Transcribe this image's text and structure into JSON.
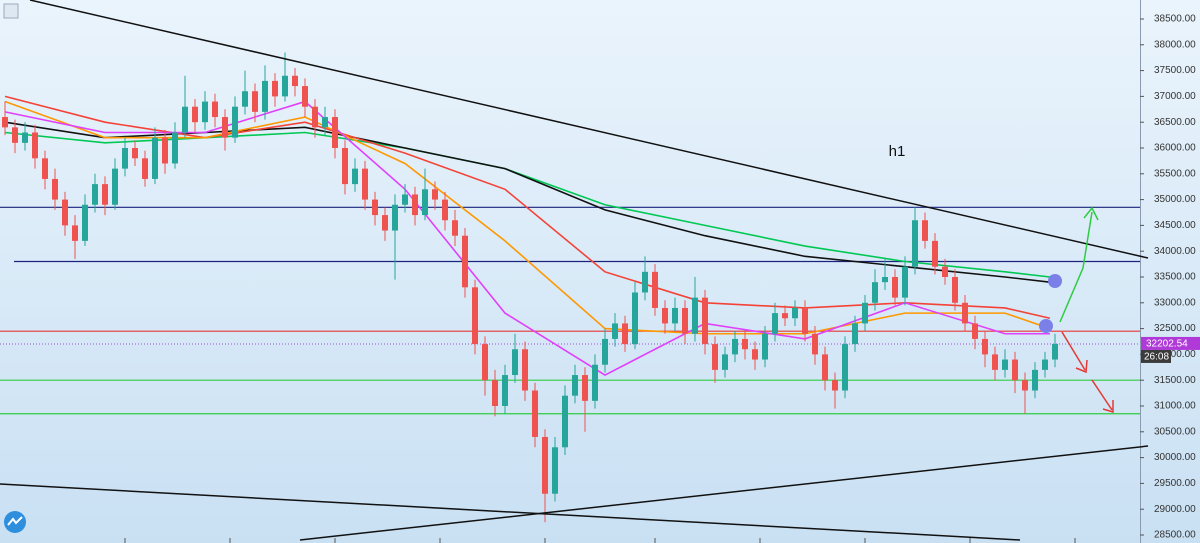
{
  "chart_data": {
    "type": "candlestick",
    "label": "h1",
    "ylim": [
      28345,
      38868
    ],
    "yticks": [
      {
        "value": 28500,
        "label": "28500.00"
      },
      {
        "value": 29000,
        "label": "29000.00"
      },
      {
        "value": 29500,
        "label": "29500.00"
      },
      {
        "value": 30000,
        "label": "30000.00"
      },
      {
        "value": 30500,
        "label": "30500.00"
      },
      {
        "value": 31000,
        "label": "31000.00"
      },
      {
        "value": 31500,
        "label": "31500.00"
      },
      {
        "value": 32000,
        "label": "32000.00"
      },
      {
        "value": 32500,
        "label": "32500.00"
      },
      {
        "value": 33000,
        "label": "33000.00"
      },
      {
        "value": 33500,
        "label": "33500.00"
      },
      {
        "value": 34000,
        "label": "34000.00"
      },
      {
        "value": 34500,
        "label": "34500.00"
      },
      {
        "value": 35000,
        "label": "35000.00"
      },
      {
        "value": 35500,
        "label": "35500.00"
      },
      {
        "value": 36000,
        "label": "36000.00"
      },
      {
        "value": 36500,
        "label": "36500.00"
      },
      {
        "value": 37000,
        "label": "37000.00"
      },
      {
        "value": 37500,
        "label": "37500.00"
      },
      {
        "value": 38000,
        "label": "38000.00"
      },
      {
        "value": 38500,
        "label": "38500.00"
      }
    ],
    "up_color": "#26a69a",
    "down_color": "#ef5350",
    "candles": [
      [
        36600,
        36900,
        36250,
        36400
      ],
      [
        36400,
        36550,
        35900,
        36100
      ],
      [
        36100,
        36500,
        35950,
        36300
      ],
      [
        36300,
        36450,
        35600,
        35800
      ],
      [
        35800,
        35950,
        35200,
        35400
      ],
      [
        35400,
        35600,
        34800,
        35000
      ],
      [
        35000,
        35150,
        34300,
        34500
      ],
      [
        34500,
        34700,
        33850,
        34200
      ],
      [
        34200,
        35100,
        34100,
        34900
      ],
      [
        34900,
        35500,
        34750,
        35300
      ],
      [
        35300,
        35450,
        34700,
        34900
      ],
      [
        34900,
        35800,
        34800,
        35600
      ],
      [
        35600,
        36200,
        35450,
        36000
      ],
      [
        36000,
        36150,
        35650,
        35800
      ],
      [
        35800,
        35950,
        35250,
        35400
      ],
      [
        35400,
        36400,
        35300,
        36200
      ],
      [
        36200,
        36350,
        35500,
        35700
      ],
      [
        35700,
        36500,
        35600,
        36300
      ],
      [
        36300,
        37400,
        36200,
        36800
      ],
      [
        36800,
        36950,
        36300,
        36500
      ],
      [
        36500,
        37100,
        36350,
        36900
      ],
      [
        36900,
        37050,
        36400,
        36600
      ],
      [
        36600,
        36750,
        35950,
        36200
      ],
      [
        36200,
        37000,
        36100,
        36800
      ],
      [
        36800,
        37500,
        36650,
        37100
      ],
      [
        37100,
        37250,
        36500,
        36700
      ],
      [
        36700,
        37600,
        36550,
        37300
      ],
      [
        37300,
        37450,
        36800,
        37000
      ],
      [
        37000,
        37850,
        36900,
        37400
      ],
      [
        37400,
        37550,
        37000,
        37200
      ],
      [
        37200,
        37350,
        36600,
        36800
      ],
      [
        36800,
        36950,
        36200,
        36400
      ],
      [
        36400,
        36800,
        36250,
        36600
      ],
      [
        36600,
        36750,
        35800,
        36000
      ],
      [
        36000,
        36150,
        35100,
        35300
      ],
      [
        35300,
        35800,
        35150,
        35600
      ],
      [
        35600,
        35750,
        34800,
        35000
      ],
      [
        35000,
        35150,
        34500,
        34700
      ],
      [
        34700,
        34850,
        34200,
        34400
      ],
      [
        34400,
        35100,
        33450,
        34900
      ],
      [
        34900,
        35300,
        34750,
        35100
      ],
      [
        35100,
        35250,
        34500,
        34700
      ],
      [
        34700,
        35600,
        34600,
        35200
      ],
      [
        35200,
        35350,
        34800,
        35000
      ],
      [
        35000,
        35150,
        34400,
        34600
      ],
      [
        34600,
        34800,
        34100,
        34300
      ],
      [
        34300,
        34450,
        33100,
        33300
      ],
      [
        33300,
        33450,
        32000,
        32200
      ],
      [
        32200,
        32350,
        31200,
        31500
      ],
      [
        31500,
        31700,
        30800,
        31000
      ],
      [
        31000,
        31800,
        30850,
        31600
      ],
      [
        31600,
        32400,
        31450,
        32100
      ],
      [
        32100,
        32250,
        31100,
        31300
      ],
      [
        31300,
        31450,
        30200,
        30400
      ],
      [
        30400,
        30550,
        28750,
        29300
      ],
      [
        29300,
        30400,
        29150,
        30200
      ],
      [
        30200,
        31400,
        30050,
        31200
      ],
      [
        31200,
        31800,
        31050,
        31600
      ],
      [
        31600,
        31750,
        30500,
        31100
      ],
      [
        31100,
        32000,
        30950,
        31800
      ],
      [
        31800,
        32500,
        31650,
        32300
      ],
      [
        32300,
        32800,
        32150,
        32600
      ],
      [
        32600,
        32750,
        32050,
        32200
      ],
      [
        32200,
        33400,
        32100,
        33200
      ],
      [
        33200,
        33900,
        33050,
        33600
      ],
      [
        33600,
        33750,
        32750,
        32900
      ],
      [
        32900,
        33050,
        32400,
        32600
      ],
      [
        32600,
        33100,
        32450,
        32900
      ],
      [
        32900,
        33050,
        32200,
        32400
      ],
      [
        32400,
        33500,
        32250,
        33100
      ],
      [
        33100,
        33250,
        32000,
        32200
      ],
      [
        32200,
        32350,
        31450,
        31700
      ],
      [
        31700,
        32150,
        31550,
        32000
      ],
      [
        32000,
        32450,
        31850,
        32300
      ],
      [
        32300,
        32450,
        31900,
        32100
      ],
      [
        32100,
        32250,
        31700,
        31900
      ],
      [
        31900,
        32550,
        31750,
        32400
      ],
      [
        32400,
        33000,
        32250,
        32800
      ],
      [
        32800,
        32950,
        32550,
        32700
      ],
      [
        32700,
        33050,
        32550,
        32900
      ],
      [
        32900,
        33050,
        32250,
        32400
      ],
      [
        32400,
        32550,
        31800,
        32000
      ],
      [
        32000,
        32150,
        31300,
        31500
      ],
      [
        31500,
        31650,
        30950,
        31300
      ],
      [
        31300,
        32350,
        31150,
        32200
      ],
      [
        32200,
        32750,
        32050,
        32600
      ],
      [
        32600,
        33150,
        32450,
        33000
      ],
      [
        33000,
        33650,
        32850,
        33400
      ],
      [
        33400,
        33850,
        33250,
        33500
      ],
      [
        33500,
        33650,
        32950,
        33100
      ],
      [
        33100,
        33900,
        32950,
        33700
      ],
      [
        33700,
        34850,
        33550,
        34600
      ],
      [
        34600,
        34750,
        34050,
        34200
      ],
      [
        34200,
        34350,
        33550,
        33700
      ],
      [
        33700,
        33850,
        33350,
        33500
      ],
      [
        33500,
        33650,
        32850,
        33000
      ],
      [
        33000,
        33150,
        32450,
        32600
      ],
      [
        32600,
        32750,
        32100,
        32300
      ],
      [
        32300,
        32450,
        31750,
        32000
      ],
      [
        32000,
        32150,
        31500,
        31700
      ],
      [
        31700,
        32100,
        31550,
        31900
      ],
      [
        31900,
        32050,
        31250,
        31500
      ],
      [
        31500,
        31650,
        30850,
        31300
      ],
      [
        31300,
        31850,
        31150,
        31700
      ],
      [
        31700,
        32050,
        31550,
        31900
      ],
      [
        31900,
        32400,
        31750,
        32202.54
      ]
    ],
    "moving_averages": {
      "x": [
        0,
        10,
        20,
        30,
        40,
        50,
        60,
        70,
        80,
        90,
        100,
        104.5
      ],
      "series": [
        {
          "color": "#00c853",
          "values": [
            36300,
            36100,
            36200,
            36300,
            36000,
            35600,
            34900,
            34500,
            34100,
            33800,
            33600,
            33500
          ]
        },
        {
          "color": "#111111",
          "values": [
            36500,
            36200,
            36300,
            36400,
            36000,
            35600,
            34800,
            34300,
            33900,
            33700,
            33500,
            33400
          ]
        },
        {
          "color": "#f44336",
          "values": [
            37000,
            36500,
            36200,
            36500,
            35900,
            35200,
            33600,
            33000,
            32900,
            33000,
            32900,
            32700
          ]
        },
        {
          "color": "#ff9800",
          "values": [
            36900,
            36200,
            36200,
            36600,
            35700,
            34200,
            32500,
            32400,
            32400,
            32800,
            32800,
            32500
          ]
        },
        {
          "color": "#e040fb",
          "values": [
            36700,
            36300,
            36300,
            36900,
            35200,
            32800,
            31600,
            32600,
            32300,
            33000,
            32400,
            32400
          ]
        }
      ]
    },
    "levels": [
      {
        "value": 34850,
        "color": "#1a237e"
      },
      {
        "value": 33800,
        "color": "#1a237e"
      },
      {
        "value": 32450,
        "color": "#e53935"
      },
      {
        "value": 31500,
        "color": "#2ecc40"
      },
      {
        "value": 30850,
        "color": "#2ecc40"
      }
    ],
    "last_price": 32202.54,
    "countdown": "26:08"
  }
}
